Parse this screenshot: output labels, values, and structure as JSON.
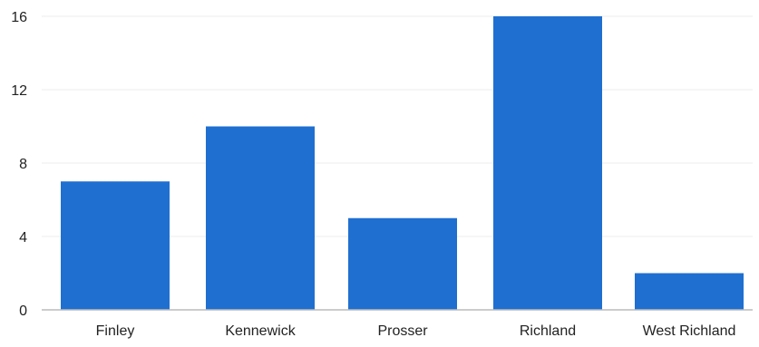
{
  "chart_data": {
    "type": "bar",
    "categories": [
      "Finley",
      "Kennewick",
      "Prosser",
      "Richland",
      "West Richland"
    ],
    "values": [
      7,
      10,
      5,
      16,
      2
    ],
    "y_ticks": [
      0,
      4,
      8,
      12,
      16
    ],
    "ylim": [
      0,
      16
    ],
    "title": "",
    "xlabel": "",
    "ylabel": "",
    "grid": true,
    "legend": "none",
    "bar_color": "#1f6fd1",
    "grid_color": "#eeeeee",
    "axis_color": "#bbbbbb"
  }
}
